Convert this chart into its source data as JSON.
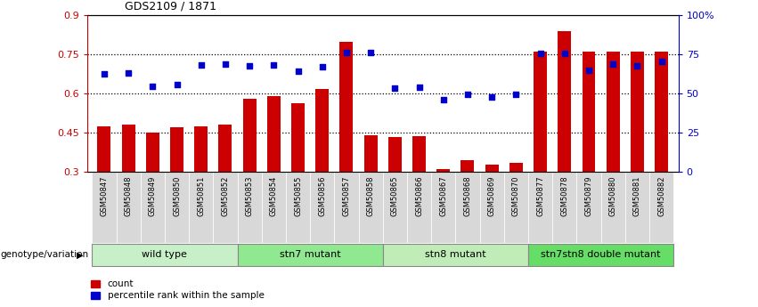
{
  "title": "GDS2109 / 1871",
  "samples": [
    "GSM50847",
    "GSM50848",
    "GSM50849",
    "GSM50850",
    "GSM50851",
    "GSM50852",
    "GSM50853",
    "GSM50854",
    "GSM50855",
    "GSM50856",
    "GSM50857",
    "GSM50858",
    "GSM50865",
    "GSM50866",
    "GSM50867",
    "GSM50868",
    "GSM50869",
    "GSM50870",
    "GSM50877",
    "GSM50878",
    "GSM50879",
    "GSM50880",
    "GSM50881",
    "GSM50882"
  ],
  "bar_values": [
    0.473,
    0.482,
    0.45,
    0.47,
    0.475,
    0.48,
    0.582,
    0.592,
    0.563,
    0.617,
    0.8,
    0.44,
    0.435,
    0.438,
    0.31,
    0.345,
    0.328,
    0.335,
    0.762,
    0.84,
    0.762,
    0.762,
    0.762,
    0.762
  ],
  "dot_values": [
    0.675,
    0.68,
    0.627,
    0.635,
    0.71,
    0.715,
    0.708,
    0.71,
    0.687,
    0.703,
    0.758,
    0.758,
    0.622,
    0.625,
    0.578,
    0.598,
    0.588,
    0.598,
    0.755,
    0.755,
    0.689,
    0.712,
    0.706,
    0.722
  ],
  "groups": [
    {
      "label": "wild type",
      "start": 0,
      "end": 5,
      "color": "#c8f0c8"
    },
    {
      "label": "stn7 mutant",
      "start": 6,
      "end": 11,
      "color": "#90e890"
    },
    {
      "label": "stn8 mutant",
      "start": 12,
      "end": 17,
      "color": "#c0ecb8"
    },
    {
      "label": "stn7stn8 double mutant",
      "start": 18,
      "end": 23,
      "color": "#66dd66"
    }
  ],
  "bar_color": "#cc0000",
  "dot_color": "#0000cc",
  "ymin": 0.3,
  "ymax": 0.9,
  "yticks": [
    0.3,
    0.45,
    0.6,
    0.75,
    0.9
  ],
  "ytick_labels": [
    "0.3",
    "0.45",
    "0.6",
    "0.75",
    "0.9"
  ],
  "right_yticks": [
    0,
    25,
    50,
    75,
    100
  ],
  "right_ytick_labels": [
    "0",
    "25",
    "50",
    "75",
    "100%"
  ],
  "hlines": [
    0.45,
    0.6,
    0.75
  ],
  "genotype_label": "genotype/variation",
  "legend_count": "count",
  "legend_percentile": "percentile rank within the sample",
  "xlabel_bg": "#d8d8d8",
  "group_border_color": "#888888"
}
